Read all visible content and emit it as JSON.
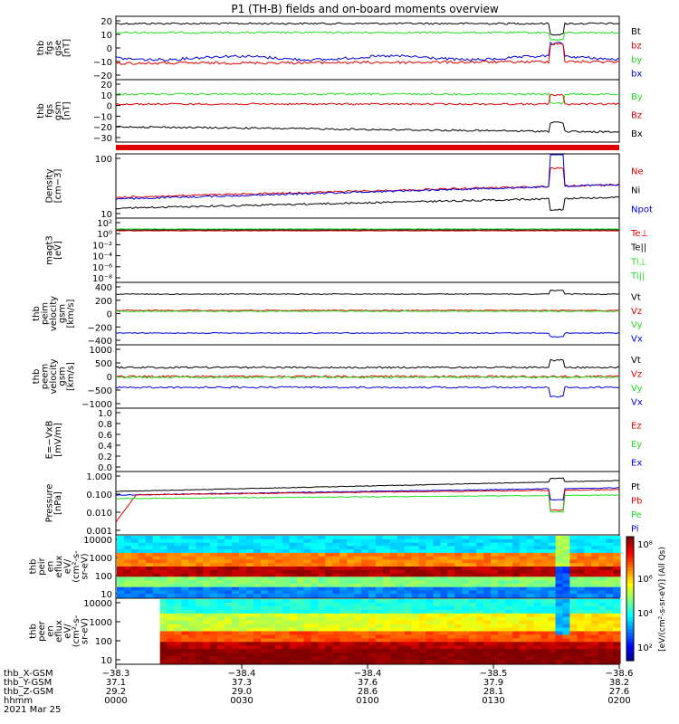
{
  "title": "P1 (TH-B) fields and on-board moments overview",
  "colors": {
    "black": "#000000",
    "red": "#e00000",
    "green": "#22dd22",
    "blue": "#0000e0"
  },
  "panels": [
    {
      "id": "fgs-gse",
      "ylabel": [
        "thb",
        "fgs",
        "gse",
        "[nT]"
      ],
      "ticks": [
        "20",
        "10",
        "0",
        "−10",
        "−20"
      ],
      "legend": [
        {
          "text": "Bt",
          "color": "black"
        },
        {
          "text": "bz",
          "color": "red"
        },
        {
          "text": "by",
          "color": "green"
        },
        {
          "text": "bx",
          "color": "blue"
        }
      ]
    },
    {
      "id": "fgs-gsm",
      "ylabel": [
        "thb",
        "fgs",
        "gsm",
        "[nT]"
      ],
      "ticks": [
        "20",
        "10",
        "0",
        "−10",
        "−20",
        "−30"
      ],
      "legend": [
        {
          "text": "By",
          "color": "green"
        },
        {
          "text": "Bz",
          "color": "red"
        },
        {
          "text": "Bx",
          "color": "black"
        }
      ]
    },
    {
      "id": "density",
      "ylabel": [
        "Density",
        "[cm−3]"
      ],
      "ticks": [
        "100",
        "10"
      ],
      "legend": [
        {
          "text": "Ne",
          "color": "red"
        },
        {
          "text": "Ni",
          "color": "black"
        },
        {
          "text": "Npot",
          "color": "blue"
        }
      ]
    },
    {
      "id": "temp",
      "ylabel": [
        "magt3",
        "[eV]"
      ],
      "ticks": [
        "10²",
        "10⁰",
        "10⁻²",
        "10⁻⁴",
        "10⁻⁶",
        "10⁻⁸"
      ],
      "legend": [
        {
          "text": "Te⊥",
          "color": "red"
        },
        {
          "text": "Te||",
          "color": "black"
        },
        {
          "text": "Ti⊥",
          "color": "green"
        },
        {
          "text": "Ti||",
          "color": "green"
        }
      ]
    },
    {
      "id": "ion-vel",
      "ylabel": [
        "thb",
        "peim",
        "velocity",
        "gsm",
        "[km/s]"
      ],
      "ticks": [
        "400",
        "200",
        "0",
        "−200",
        "−400"
      ],
      "legend": [
        {
          "text": "Vt",
          "color": "black"
        },
        {
          "text": "Vz",
          "color": "red"
        },
        {
          "text": "Vy",
          "color": "green"
        },
        {
          "text": "Vx",
          "color": "blue"
        }
      ]
    },
    {
      "id": "elec-vel",
      "ylabel": [
        "thb",
        "peem",
        "velocity",
        "gsm",
        "[km/s]"
      ],
      "ticks": [
        "1000",
        "500",
        "0",
        "−500",
        "−1000"
      ],
      "legend": [
        {
          "text": "Vt",
          "color": "black"
        },
        {
          "text": "Vz",
          "color": "red"
        },
        {
          "text": "Vy",
          "color": "green"
        },
        {
          "text": "Vx",
          "color": "blue"
        }
      ]
    },
    {
      "id": "efield",
      "ylabel": [
        "E=−VxB",
        "[mV/m]"
      ],
      "ticks": [
        "1.0",
        "0.8",
        "0.6",
        "0.4",
        "0.2",
        "0.0"
      ],
      "legend": [
        {
          "text": "Ez",
          "color": "red"
        },
        {
          "text": "Ey",
          "color": "green"
        },
        {
          "text": "Ex",
          "color": "blue"
        }
      ]
    },
    {
      "id": "pressure",
      "ylabel": [
        "Pressure",
        "[nPa]"
      ],
      "ticks": [
        "1.000",
        "0.100",
        "0.010",
        "0.001"
      ],
      "legend": [
        {
          "text": "Pt",
          "color": "black"
        },
        {
          "text": "Pb",
          "color": "red"
        },
        {
          "text": "Pe",
          "color": "green"
        },
        {
          "text": "Pi",
          "color": "blue"
        }
      ]
    },
    {
      "id": "ion-spec",
      "ylabel": [
        "thb",
        "peir",
        "en",
        "eflux",
        "eV/",
        "(cm²-s-",
        "sr-eV)"
      ],
      "ticks": [
        "10000",
        "1000",
        "100",
        "10"
      ],
      "legend": []
    },
    {
      "id": "elec-spec",
      "ylabel": [
        "thb",
        "peer",
        "en",
        "eflux",
        "eV/",
        "(cm²-s-",
        "sr-eV)"
      ],
      "ticks": [
        "10000",
        "1000",
        "100",
        "10"
      ],
      "legend": []
    }
  ],
  "colorbar": {
    "ticks": [
      "10⁸",
      "10⁶",
      "10⁴",
      "10²"
    ],
    "label": "[eV/(cm²-s-sr-eV)] (All Qs)"
  },
  "xaxis": {
    "labels": [
      "thb_X-GSM",
      "thb_Y-GSM",
      "thb_Z-GSM",
      "hhmm",
      "2021 Mar 25"
    ],
    "rows": [
      [
        "−38.3",
        "−38.4",
        "−38.4",
        "−38.5",
        "−38.6"
      ],
      [
        "37.1",
        "37.3",
        "37.6",
        "37.9",
        "38.2"
      ],
      [
        "29.2",
        "29.0",
        "28.6",
        "28.1",
        "27.6"
      ],
      [
        "0000",
        "0030",
        "0100",
        "0130",
        "0200"
      ]
    ]
  },
  "chart_data": {
    "type": "line",
    "title": "P1 (TH-B) fields and on-board moments overview",
    "x": [
      "0000",
      "0030",
      "0100",
      "0130",
      "0200"
    ],
    "xlabel": "hhmm",
    "date": "2021 Mar 25",
    "series": [
      {
        "panel": "fgs-gse",
        "name": "Bt",
        "values": [
          18,
          18,
          17,
          18,
          18
        ]
      },
      {
        "panel": "fgs-gse",
        "name": "bz",
        "values": [
          -9,
          -9,
          -8,
          -7,
          -9
        ]
      },
      {
        "panel": "fgs-gse",
        "name": "by",
        "values": [
          11,
          11,
          11,
          11,
          10
        ]
      },
      {
        "panel": "fgs-gse",
        "name": "bx",
        "values": [
          -6,
          -7,
          -8,
          -7,
          -8
        ]
      },
      {
        "panel": "fgs-gsm",
        "name": "By",
        "values": [
          10,
          10,
          10,
          11,
          9
        ]
      },
      {
        "panel": "fgs-gsm",
        "name": "Bz",
        "values": [
          3,
          4,
          4,
          5,
          5
        ]
      },
      {
        "panel": "fgs-gsm",
        "name": "Bx",
        "values": [
          -18,
          -19,
          -20,
          -20,
          -23
        ]
      },
      {
        "panel": "density",
        "name": "Ne",
        "values": [
          25,
          22,
          30,
          38,
          42
        ]
      },
      {
        "panel": "density",
        "name": "Ni",
        "values": [
          16,
          14,
          18,
          22,
          24
        ]
      },
      {
        "panel": "density",
        "name": "Npot",
        "values": [
          24,
          21,
          29,
          36,
          40
        ]
      },
      {
        "panel": "pressure",
        "name": "Pt",
        "values": [
          0.25,
          0.3,
          0.35,
          0.45,
          0.5
        ]
      },
      {
        "panel": "pressure",
        "name": "Pb",
        "values": [
          0.12,
          0.13,
          0.15,
          0.18,
          0.2
        ]
      },
      {
        "panel": "pressure",
        "name": "Pe",
        "values": [
          0.08,
          0.09,
          0.1,
          0.12,
          0.13
        ]
      },
      {
        "panel": "pressure",
        "name": "Pi",
        "values": [
          0.12,
          0.14,
          0.17,
          0.22,
          0.25
        ]
      }
    ]
  }
}
